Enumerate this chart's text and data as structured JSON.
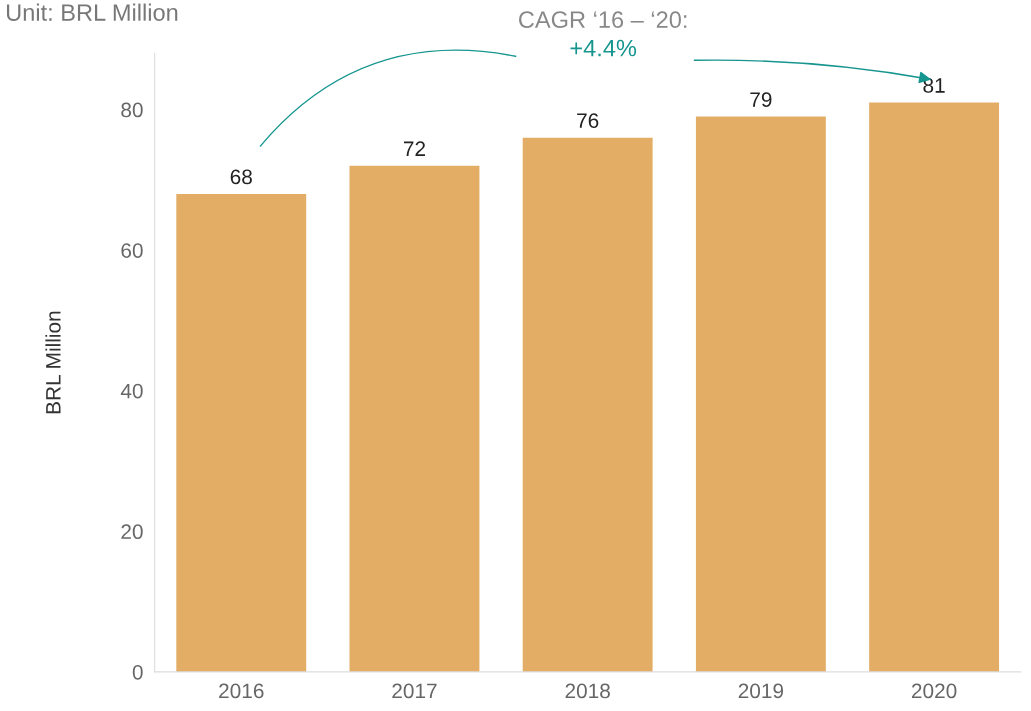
{
  "chart_data": {
    "type": "bar",
    "subtitle": "Unit: BRL Million",
    "ylabel": "BRL Million",
    "categories": [
      "2016",
      "2017",
      "2018",
      "2019",
      "2020"
    ],
    "values": [
      68,
      72,
      76,
      79,
      81
    ],
    "color": "#e3ad65",
    "ylim": [
      0,
      88
    ],
    "yticks": [
      0,
      20,
      40,
      60,
      80
    ],
    "grid": false,
    "data_labels": true,
    "annotations": [
      "CAGR ‘16 – ‘20:",
      "+4.4%"
    ]
  }
}
